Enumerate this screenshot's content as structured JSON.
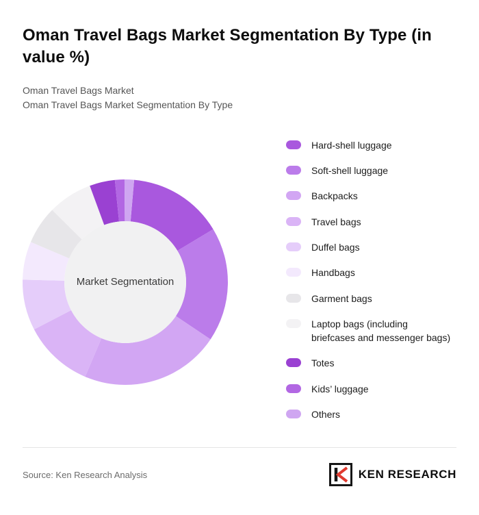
{
  "page": {
    "title": "Oman Travel Bags Market Segmentation By Type (in value %)",
    "subtitle_line1": "Oman Travel Bags Market",
    "subtitle_line2": "Oman Travel Bags Market Segmentation By Type",
    "source": "Source: Ken Research Analysis",
    "brand": {
      "mark": "K",
      "name": "KEN RESEARCH",
      "accent_color": "#e03a2f"
    }
  },
  "chart_data": {
    "type": "pie",
    "subtype": "donut",
    "title": "Oman Travel Bags Market Segmentation By Type (in value %)",
    "center_label": "Market Segmentation",
    "unit": "value %",
    "legend_position": "right",
    "rotation_deg": 5,
    "center_fill": "#f1f1f2",
    "segments": [
      {
        "label": "Hard-shell luggage",
        "value": 15,
        "color": "#a958de"
      },
      {
        "label": "Soft-shell luggage",
        "value": 18,
        "color": "#bb7cea"
      },
      {
        "label": "Backpacks",
        "value": 22,
        "color": "#d2a6f3"
      },
      {
        "label": "Travel bags",
        "value": 11,
        "color": "#dab4f6"
      },
      {
        "label": "Duffel bags",
        "value": 8,
        "color": "#e5cdfa"
      },
      {
        "label": "Handbags",
        "value": 6,
        "color": "#f3e9fd"
      },
      {
        "label": "Garment bags",
        "value": 6,
        "color": "#e7e6e9"
      },
      {
        "label": "Laptop bags (including briefcases and messenger bags)",
        "value": 7,
        "color": "#f3f2f4"
      },
      {
        "label": "Totes",
        "value": 4,
        "color": "#9a41d2"
      },
      {
        "label": "Kids’ luggage",
        "value": 1.5,
        "color": "#b267e3"
      },
      {
        "label": "Others",
        "value": 1.5,
        "color": "#cfa6f1"
      }
    ]
  }
}
